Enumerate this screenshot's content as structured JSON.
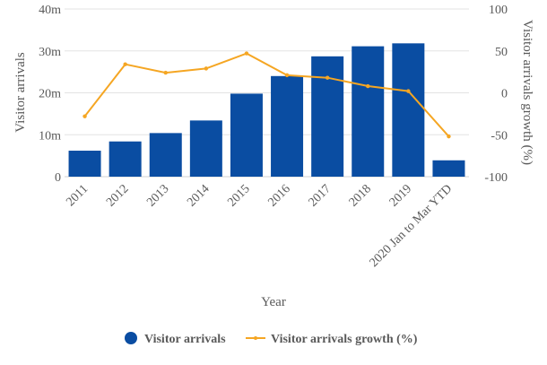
{
  "chart_data": {
    "type": "bar",
    "xlabel": "Year",
    "ylabel": "Visitor arrivals",
    "y2label": "Visitor arrivals growth (%)",
    "categories": [
      "2011",
      "2012",
      "2013",
      "2014",
      "2015",
      "2016",
      "2017",
      "2018",
      "2019",
      "2020 Jan to Mar YTD"
    ],
    "y_ticks": [
      "0",
      "10m",
      "20m",
      "30m",
      "40m"
    ],
    "y2_ticks": [
      "-100",
      "-50",
      "0",
      "50",
      "100"
    ],
    "ylim": [
      0,
      40
    ],
    "y2lim": [
      -100,
      100
    ],
    "grid": true,
    "legend_position": "bottom",
    "series": [
      {
        "name": "Visitor arrivals",
        "type": "bar",
        "axis": "left",
        "unit": "m",
        "color": "#0a4da2",
        "values": [
          6.2,
          8.4,
          10.4,
          13.4,
          19.8,
          24.0,
          28.7,
          31.1,
          31.8,
          3.9
        ]
      },
      {
        "name": "Visitor arrivals growth (%)",
        "type": "line",
        "axis": "right",
        "color": "#f5a623",
        "values": [
          -28,
          34,
          24,
          29,
          47,
          21,
          18,
          8,
          2,
          -52
        ]
      }
    ]
  }
}
